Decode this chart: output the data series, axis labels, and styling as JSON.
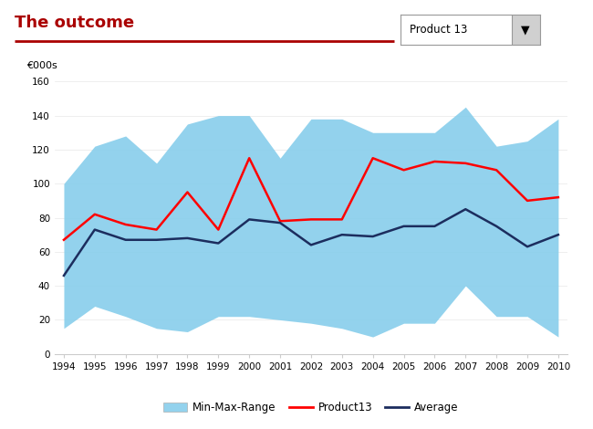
{
  "years": [
    1994,
    1995,
    1996,
    1997,
    1998,
    1999,
    2000,
    2001,
    2002,
    2003,
    2004,
    2005,
    2006,
    2007,
    2008,
    2009,
    2010
  ],
  "min_vals": [
    15,
    28,
    22,
    15,
    13,
    22,
    22,
    20,
    18,
    15,
    10,
    18,
    18,
    40,
    22,
    22,
    10
  ],
  "max_vals": [
    100,
    122,
    128,
    112,
    135,
    140,
    140,
    115,
    138,
    138,
    130,
    130,
    130,
    145,
    122,
    125,
    138
  ],
  "product13": [
    67,
    82,
    76,
    73,
    95,
    73,
    115,
    78,
    79,
    79,
    115,
    108,
    113,
    112,
    108,
    90,
    92
  ],
  "average": [
    46,
    73,
    67,
    67,
    68,
    65,
    79,
    77,
    64,
    70,
    69,
    75,
    75,
    85,
    75,
    63,
    70
  ],
  "title": "The outcome",
  "ylabel": "€000s",
  "ylim": [
    0,
    160
  ],
  "yticks": [
    0,
    20,
    40,
    60,
    80,
    100,
    120,
    140,
    160
  ],
  "title_color": "#AA0000",
  "title_fontsize": 13,
  "range_color": "#87CEEB",
  "range_alpha": 0.9,
  "product13_color": "#FF0000",
  "average_color": "#1C2D5E",
  "line_width": 1.8,
  "background_color": "#FFFFFF",
  "legend_labels": [
    "Min-Max-Range",
    "Product13",
    "Average"
  ],
  "dropdown_text": "Product 13",
  "ylabel_fontsize": 8,
  "tick_fontsize": 7.5,
  "underline_color": "#AA0000",
  "grid_color": "#E8E8E8",
  "spine_color": "#CCCCCC"
}
